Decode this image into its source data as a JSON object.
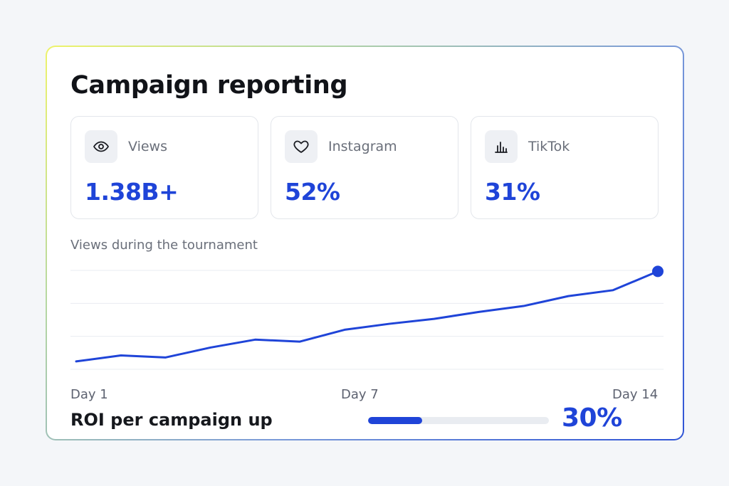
{
  "card": {
    "title": "Campaign reporting"
  },
  "stats": [
    {
      "icon": "eye-icon",
      "label": "Views",
      "value": "1.38B+"
    },
    {
      "icon": "heart-icon",
      "label": "Instagram",
      "value": "52%"
    },
    {
      "icon": "bar-chart-icon",
      "label": "TikTok",
      "value": "31%"
    }
  ],
  "colors": {
    "accent": "#1f44d8",
    "grid": "#e9ecf1",
    "muted_text": "#6a6f7a"
  },
  "chart_data": {
    "type": "line",
    "title": "Views during the tournament",
    "xlabel": "",
    "ylabel": "",
    "x_tick_labels": [
      "Day 1",
      "Day 7",
      "Day 14"
    ],
    "x": [
      1,
      2,
      3,
      4,
      5,
      6,
      7,
      8,
      9,
      10,
      11,
      12,
      13,
      14
    ],
    "series": [
      {
        "values": [
          8,
          14,
          12,
          22,
          30,
          28,
          40,
          46,
          51,
          58,
          64,
          74,
          80,
          99
        ]
      }
    ],
    "ylim": [
      0,
      100
    ],
    "grid": true,
    "gridlines": 4,
    "legend": "none",
    "end_marker": true
  },
  "roi": {
    "label": "ROI per campaign up",
    "value": "30%",
    "fraction": 0.3
  }
}
